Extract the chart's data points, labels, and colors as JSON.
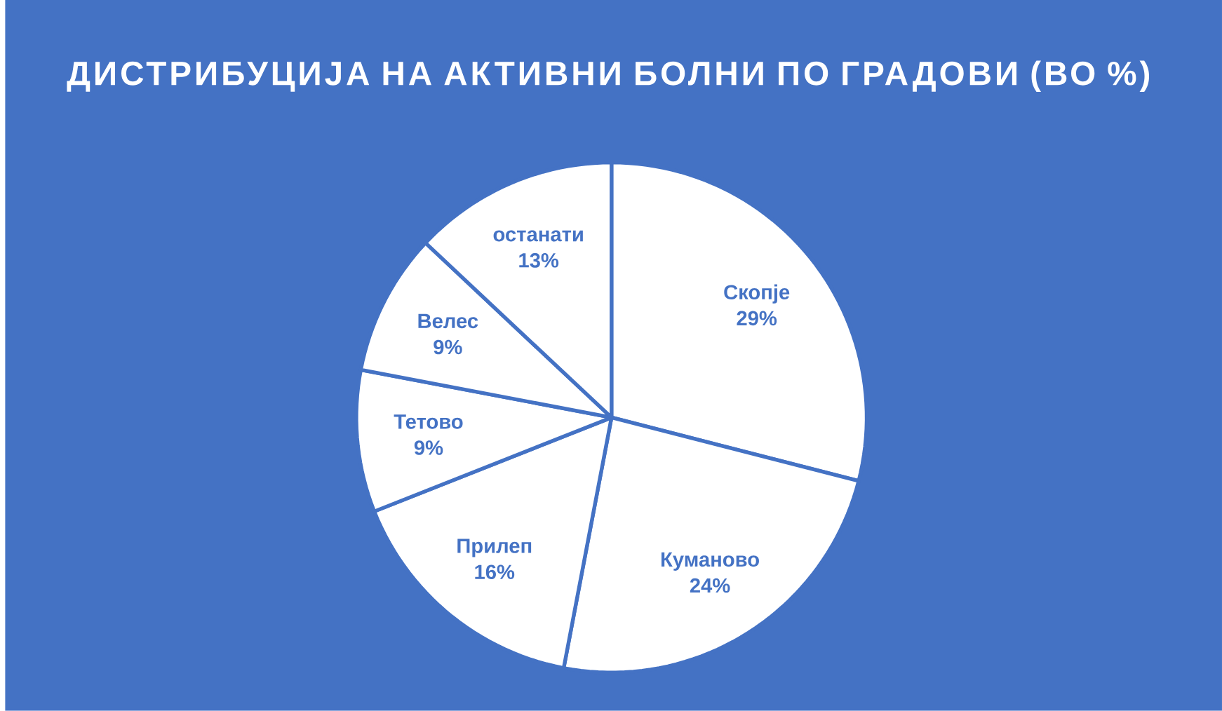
{
  "chart_data": {
    "type": "pie",
    "title": "ДИСТРИБУЦИЈА НА АКТИВНИ БОЛНИ ПО ГРАДОВИ (ВО %)",
    "categories": [
      "Скопје",
      "Куманово",
      "Прилеп",
      "Тетово",
      "Велес",
      "останати"
    ],
    "values": [
      29,
      24,
      16,
      9,
      9,
      13
    ],
    "colors": [
      "#ffffff",
      "#ffffff",
      "#ffffff",
      "#ffffff",
      "#ffffff",
      "#ffffff"
    ],
    "value_labels": [
      "29%",
      "24%",
      "16%",
      "9%",
      "9%",
      "13%"
    ]
  }
}
